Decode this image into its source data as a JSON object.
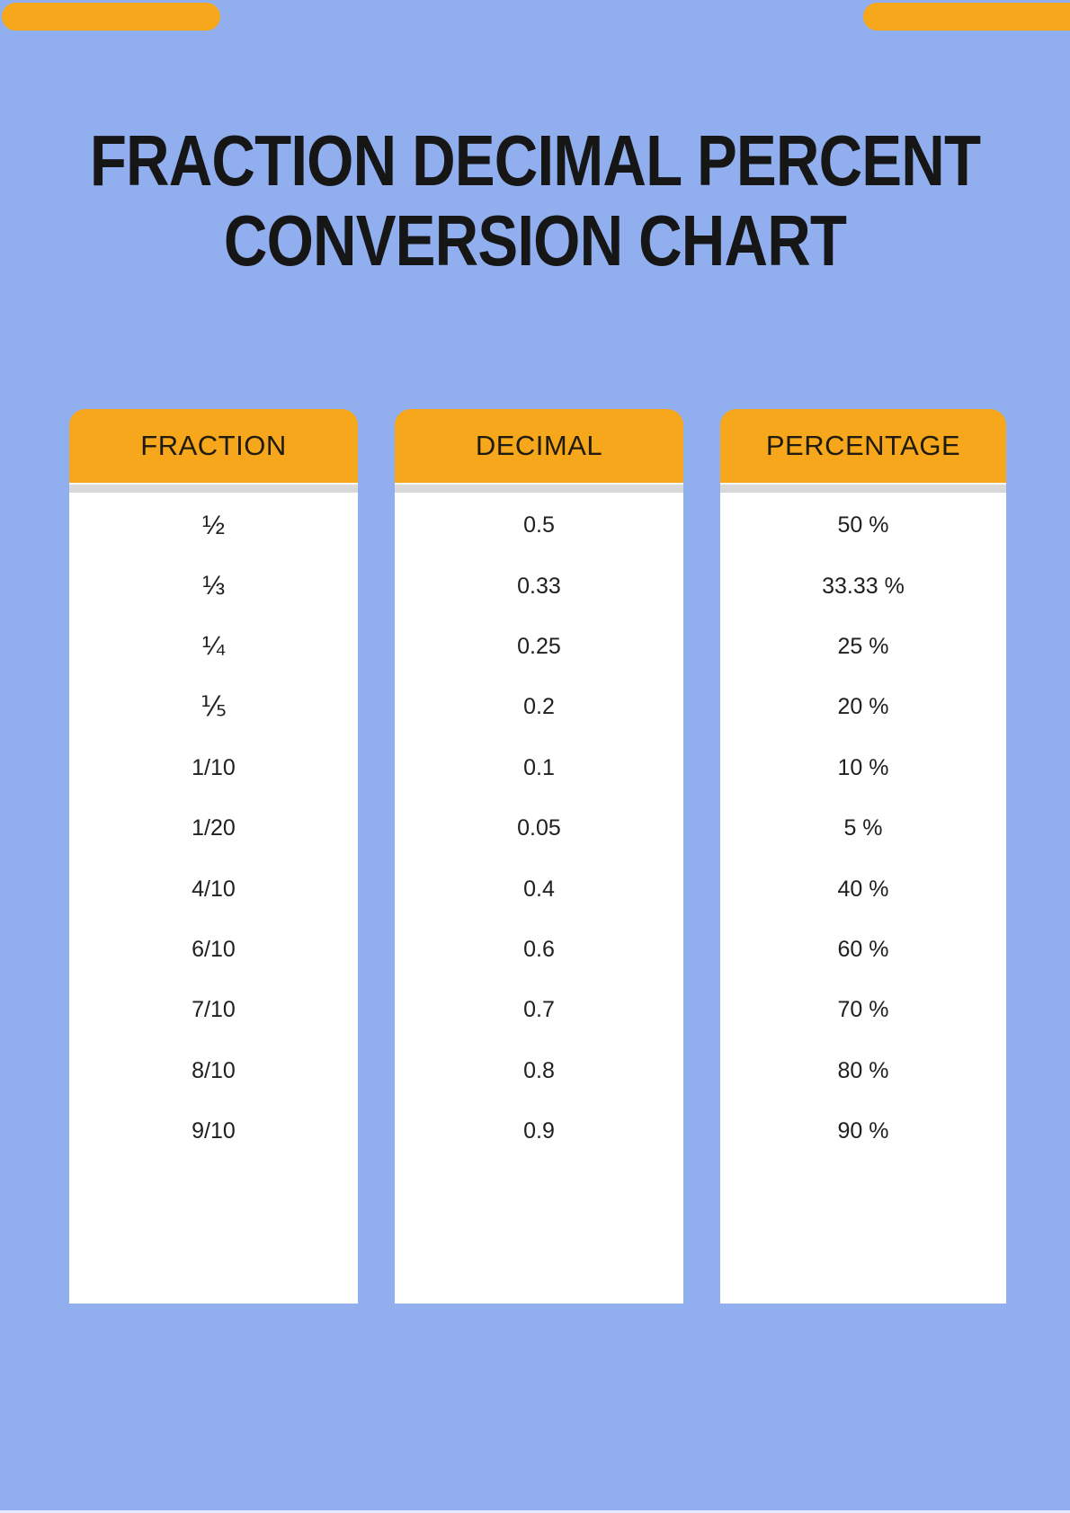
{
  "title": {
    "line1": "FRACTION DECIMAL PERCENT",
    "line2": "CONVERSION CHART"
  },
  "colors": {
    "background": "#91AEEE",
    "accent_orange": "#F7A71B",
    "title_text": "#161616",
    "cell_text": "#202020",
    "header_shadow": "#DCDCDC",
    "column_background": "#FFFFFF"
  },
  "table": {
    "columns": [
      {
        "header": "FRACTION",
        "values": [
          "½",
          "⅓",
          "¼",
          "⅕",
          "1/10",
          "1/20",
          "4/10",
          "6/10",
          "7/10",
          "8/10",
          "9/10"
        ]
      },
      {
        "header": "DECIMAL",
        "values": [
          "0.5",
          "0.33",
          "0.25",
          "0.2",
          "0.1",
          "0.05",
          "0.4",
          "0.6",
          "0.7",
          "0.8",
          "0.9"
        ]
      },
      {
        "header": "PERCENTAGE",
        "values": [
          "50 %",
          "33.33 %",
          "25 %",
          "20 %",
          "10 %",
          "5 %",
          "40 %",
          "60 %",
          "70 %",
          "80 %",
          "90 %"
        ]
      }
    ]
  }
}
